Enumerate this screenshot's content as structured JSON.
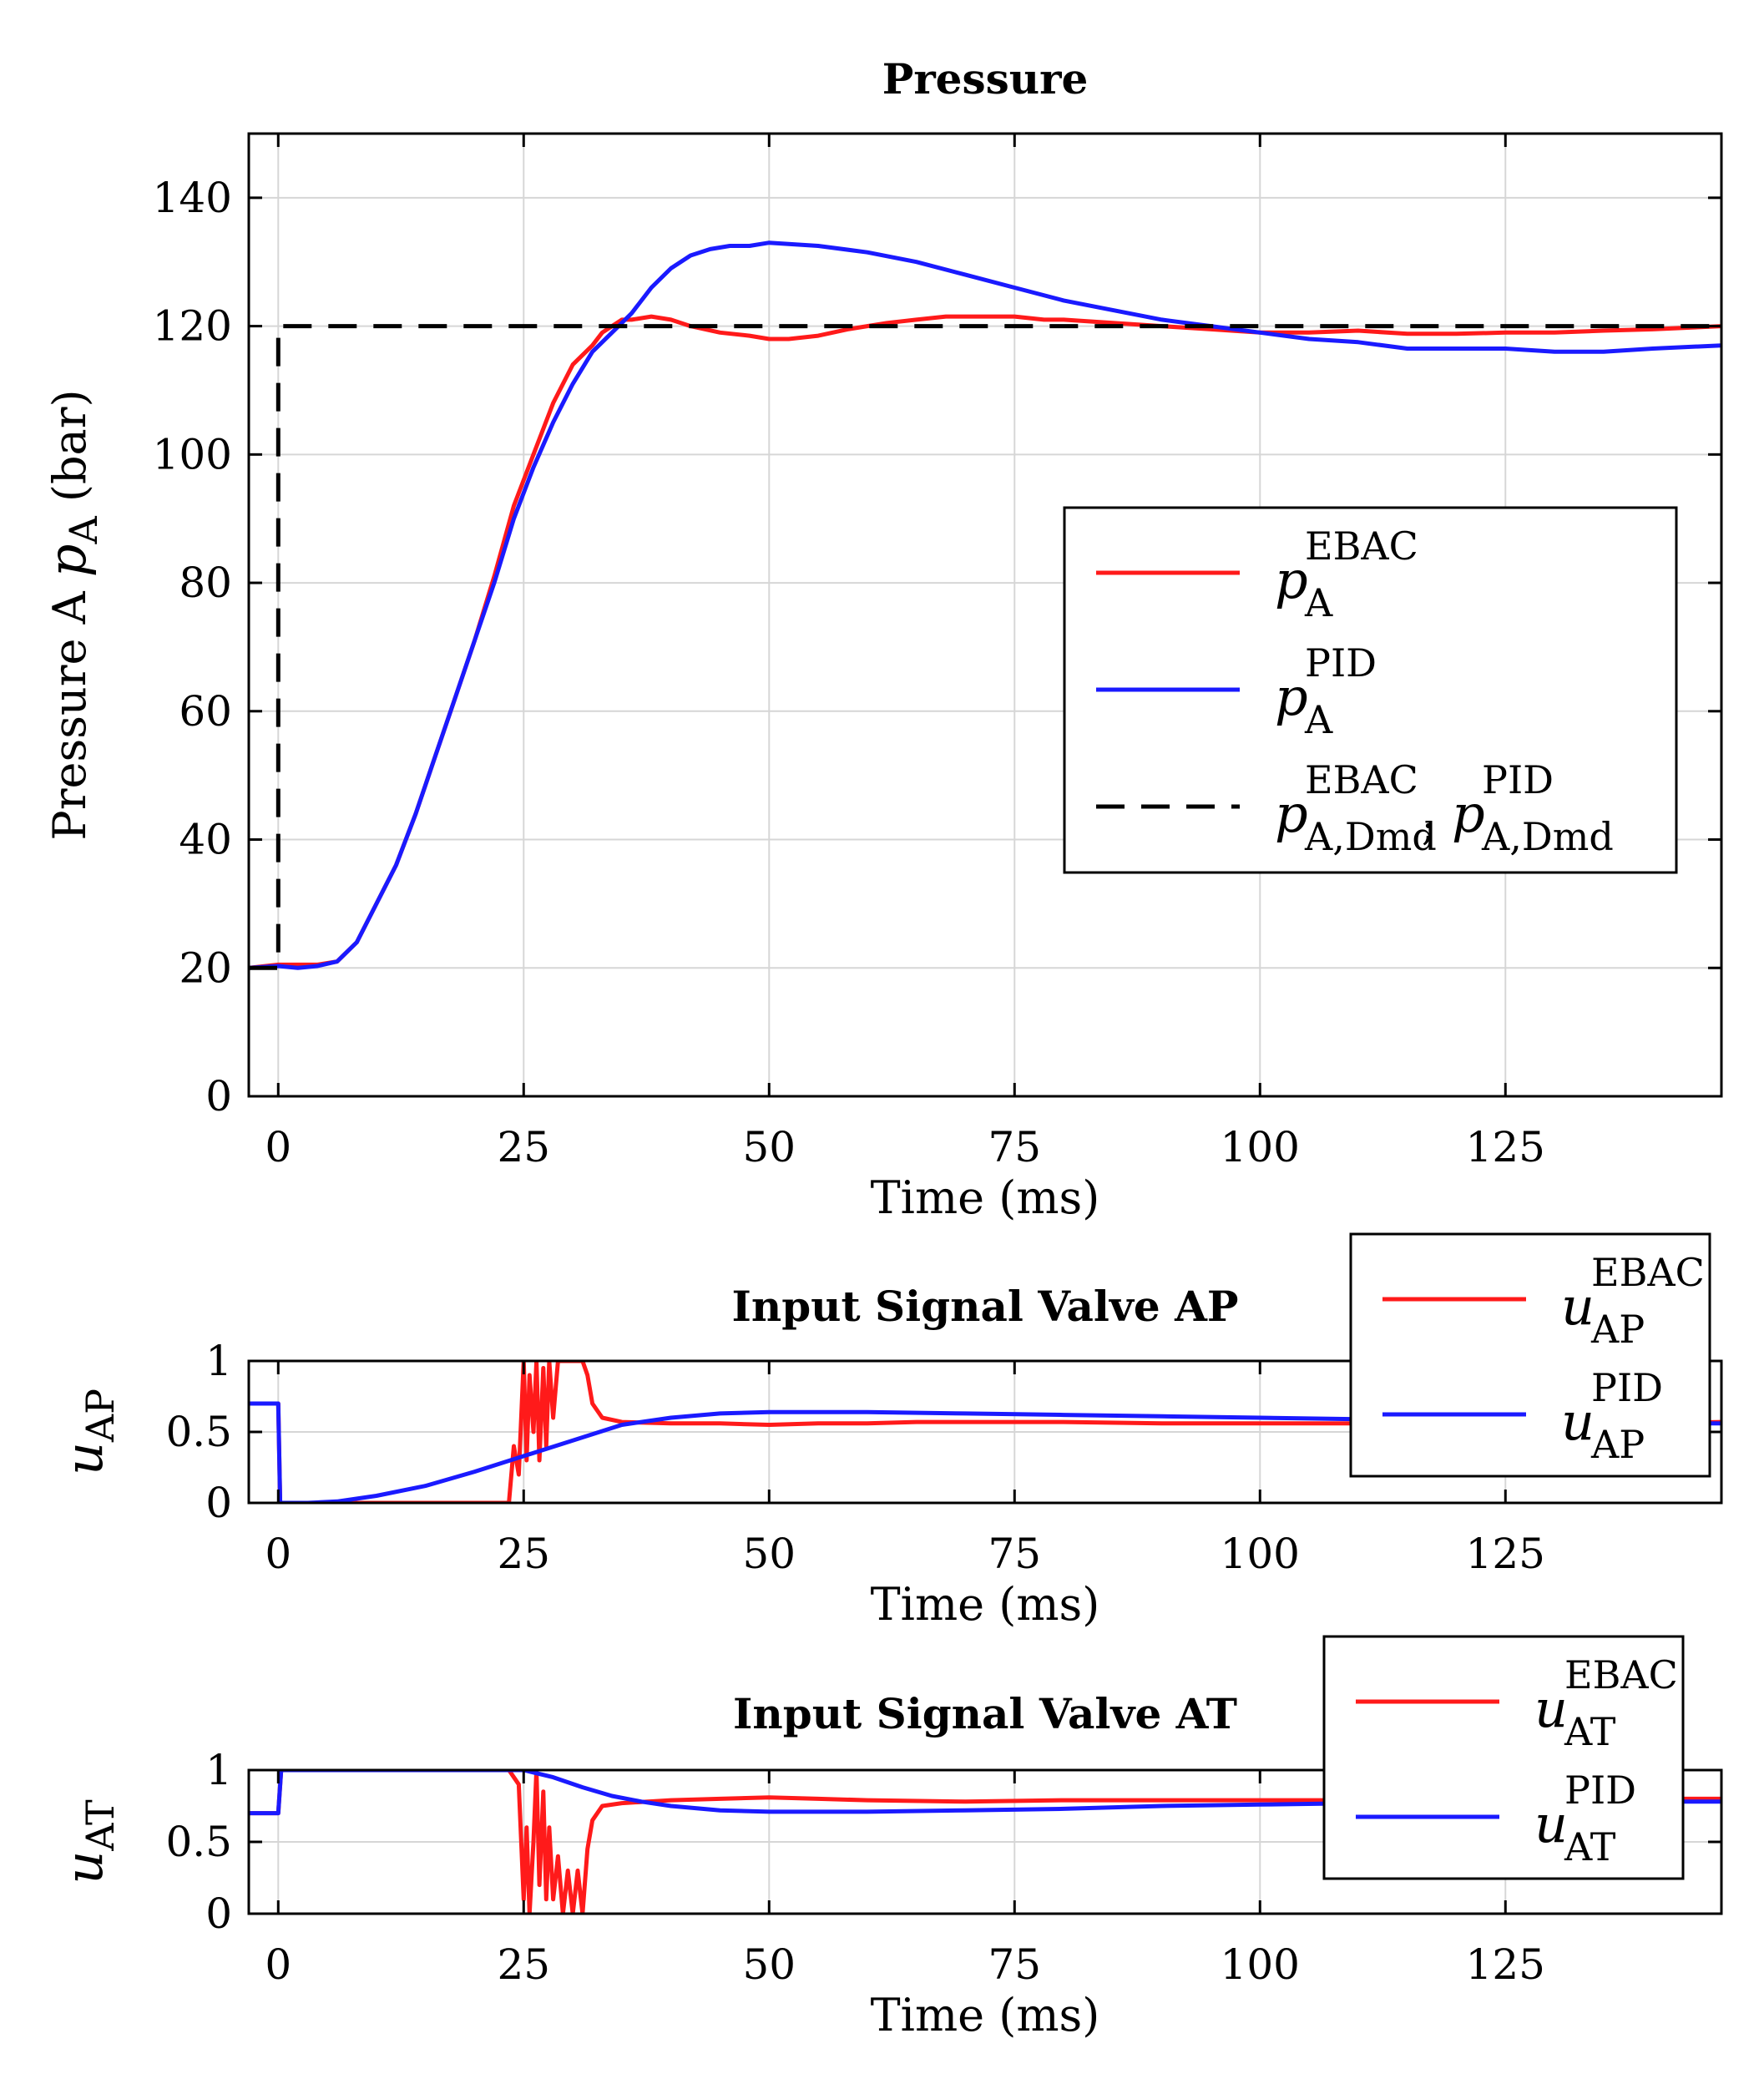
{
  "colors": {
    "red": "#ff1a1a",
    "blue": "#1a1aff",
    "black": "#000000",
    "grid": "#d6d6d6"
  },
  "chart_data": [
    {
      "id": "pressure",
      "type": "line",
      "title": "Pressure",
      "xlabel": "Time  (ms)",
      "ylabel": "Pressure A",
      "ylabel_sym": "p",
      "ylabel_sub": "A",
      "ylabel_unit": "(bar)",
      "xlim": [
        -3,
        147
      ],
      "ylim": [
        0,
        150
      ],
      "xticks": [
        0,
        25,
        50,
        75,
        100,
        125
      ],
      "yticks": [
        0,
        20,
        40,
        60,
        80,
        100,
        120,
        140
      ],
      "grid": true,
      "legend_position": "center-right",
      "series": [
        {
          "name": "p_A^EBAC",
          "sym": "p",
          "sup": "EBAC",
          "sub": "A",
          "color": "red",
          "style": "solid",
          "x": [
            -3,
            0,
            2,
            4,
            6,
            8,
            10,
            12,
            14,
            16,
            18,
            20,
            22,
            24,
            26,
            28,
            30,
            32,
            33,
            34,
            35,
            36,
            38,
            40,
            42,
            45,
            48,
            50,
            52,
            55,
            58,
            60,
            62,
            65,
            68,
            70,
            72,
            75,
            78,
            80,
            85,
            90,
            95,
            100,
            105,
            110,
            115,
            120,
            125,
            130,
            135,
            140,
            147
          ],
          "y": [
            20,
            20.5,
            20.5,
            20.5,
            21,
            24,
            30,
            36,
            44,
            53,
            62,
            71,
            81,
            92,
            100,
            108,
            114,
            117,
            119,
            120,
            121,
            121,
            121.5,
            121,
            120,
            119,
            118.5,
            118,
            118,
            118.5,
            119.5,
            120,
            120.5,
            121,
            121.5,
            121.5,
            121.5,
            121.5,
            121,
            121,
            120.5,
            120,
            119.5,
            119,
            119,
            119.3,
            118.8,
            118.8,
            119,
            119,
            119.3,
            119.5,
            120
          ]
        },
        {
          "name": "p_A^PID",
          "sym": "p",
          "sup": "PID",
          "sub": "A",
          "color": "blue",
          "style": "solid",
          "x": [
            -3,
            0,
            2,
            4,
            6,
            8,
            10,
            12,
            14,
            16,
            18,
            20,
            22,
            24,
            26,
            28,
            30,
            32,
            34,
            36,
            38,
            40,
            42,
            44,
            46,
            48,
            50,
            55,
            60,
            65,
            70,
            75,
            80,
            85,
            90,
            95,
            100,
            105,
            110,
            115,
            120,
            125,
            130,
            135,
            140,
            147
          ],
          "y": [
            20,
            20.3,
            20,
            20.3,
            21,
            24,
            30,
            36,
            44,
            53,
            62,
            71,
            80,
            90,
            98,
            105,
            111,
            116,
            119,
            122,
            126,
            129,
            131,
            132,
            132.5,
            132.5,
            133,
            132.5,
            131.5,
            130,
            128,
            126,
            124,
            122.5,
            121,
            120,
            119,
            118,
            117.5,
            116.5,
            116.5,
            116.5,
            116,
            116,
            116.5,
            117
          ]
        },
        {
          "name": "p_A,Dmd^EBAC ; p_A,Dmd^PID",
          "sym": "p",
          "sup": "EBAC",
          "sub": "A,Dmd",
          "sym2": "p",
          "sup2": "PID",
          "sub2": "A,Dmd",
          "sep": ";",
          "color": "black",
          "style": "dashed",
          "x": [
            -3,
            0,
            0,
            147
          ],
          "y": [
            20,
            20,
            120,
            120
          ]
        }
      ]
    },
    {
      "id": "valve-ap",
      "type": "line",
      "title": "Input Signal Valve AP",
      "xlabel": "Time  (ms)",
      "ylabel_sym": "u",
      "ylabel_sub": "AP",
      "xlim": [
        -3,
        147
      ],
      "ylim": [
        0,
        1
      ],
      "xticks": [
        0,
        25,
        50,
        75,
        100,
        125
      ],
      "yticks": [
        0,
        0.5,
        1
      ],
      "ytick_labels": [
        "0",
        "0.5",
        "1"
      ],
      "grid": true,
      "legend_position": "top-right",
      "series": [
        {
          "name": "u_AP^EBAC",
          "sym": "u",
          "sup": "EBAC",
          "sub": "AP",
          "color": "red",
          "style": "solid",
          "x": [
            -3,
            0,
            0.2,
            10,
            20,
            23.5,
            24,
            24.5,
            25,
            25.3,
            25.6,
            26,
            26.3,
            26.6,
            27,
            27.3,
            27.6,
            28,
            28.5,
            29,
            30,
            31,
            31.5,
            32,
            33,
            35,
            40,
            45,
            50,
            55,
            60,
            65,
            70,
            75,
            80,
            90,
            100,
            110,
            120,
            130,
            140,
            147
          ],
          "y": [
            0.7,
            0.7,
            0,
            0,
            0,
            0,
            0.4,
            0.2,
            1,
            0.3,
            0.9,
            0.5,
            1,
            0.3,
            0.95,
            0.4,
            1,
            0.6,
            1,
            1,
            1,
            1,
            0.9,
            0.7,
            0.6,
            0.57,
            0.56,
            0.56,
            0.55,
            0.56,
            0.56,
            0.57,
            0.57,
            0.57,
            0.57,
            0.56,
            0.56,
            0.56,
            0.56,
            0.56,
            0.56,
            0.57
          ]
        },
        {
          "name": "u_AP^PID",
          "sym": "u",
          "sup": "PID",
          "sub": "AP",
          "color": "blue",
          "style": "solid",
          "x": [
            -3,
            0,
            0.2,
            3,
            6,
            10,
            15,
            20,
            25,
            30,
            35,
            40,
            45,
            50,
            60,
            70,
            80,
            90,
            100,
            110,
            120,
            130,
            140,
            147
          ],
          "y": [
            0.7,
            0.7,
            0,
            0,
            0.01,
            0.05,
            0.12,
            0.22,
            0.33,
            0.44,
            0.55,
            0.6,
            0.63,
            0.64,
            0.64,
            0.63,
            0.62,
            0.61,
            0.6,
            0.59,
            0.58,
            0.57,
            0.56,
            0.56
          ]
        }
      ]
    },
    {
      "id": "valve-at",
      "type": "line",
      "title": "Input Signal Valve AT",
      "xlabel": "Time  (ms)",
      "ylabel_sym": "u",
      "ylabel_sub": "AT",
      "xlim": [
        -3,
        147
      ],
      "ylim": [
        0,
        1
      ],
      "xticks": [
        0,
        25,
        50,
        75,
        100,
        125
      ],
      "yticks": [
        0,
        0.5,
        1
      ],
      "ytick_labels": [
        "0",
        "0.5",
        "1"
      ],
      "grid": true,
      "legend_position": "top-right",
      "series": [
        {
          "name": "u_AT^EBAC",
          "sym": "u",
          "sup": "EBAC",
          "sub": "AT",
          "color": "red",
          "style": "solid",
          "x": [
            -3,
            0,
            0.3,
            10,
            20,
            23.5,
            24,
            24.5,
            25,
            25.3,
            25.6,
            26,
            26.3,
            26.6,
            27,
            27.3,
            27.6,
            28,
            28.5,
            29,
            29.5,
            30,
            30.5,
            31,
            31.5,
            32,
            33,
            35,
            40,
            45,
            50,
            55,
            60,
            70,
            80,
            90,
            100,
            110,
            120,
            130,
            140,
            147
          ],
          "y": [
            0.7,
            0.7,
            1,
            1,
            1,
            1,
            0.95,
            0.9,
            0.1,
            0.6,
            0,
            0.5,
            1,
            0.2,
            0.85,
            0.1,
            0.6,
            0.1,
            0.4,
            0,
            0.3,
            0,
            0.3,
            0,
            0.45,
            0.65,
            0.75,
            0.77,
            0.79,
            0.8,
            0.81,
            0.8,
            0.79,
            0.78,
            0.79,
            0.79,
            0.79,
            0.79,
            0.79,
            0.79,
            0.8,
            0.8
          ]
        },
        {
          "name": "u_AT^PID",
          "sym": "u",
          "sup": "PID",
          "sub": "AT",
          "color": "blue",
          "style": "solid",
          "x": [
            -3,
            0,
            0.3,
            10,
            20,
            25,
            28,
            31,
            34,
            37,
            40,
            45,
            50,
            60,
            70,
            80,
            90,
            100,
            110,
            120,
            130,
            140,
            147
          ],
          "y": [
            0.7,
            0.7,
            1,
            1,
            1,
            1,
            0.95,
            0.88,
            0.82,
            0.78,
            0.75,
            0.72,
            0.71,
            0.71,
            0.72,
            0.73,
            0.75,
            0.76,
            0.77,
            0.77,
            0.78,
            0.78,
            0.78
          ]
        }
      ]
    }
  ]
}
